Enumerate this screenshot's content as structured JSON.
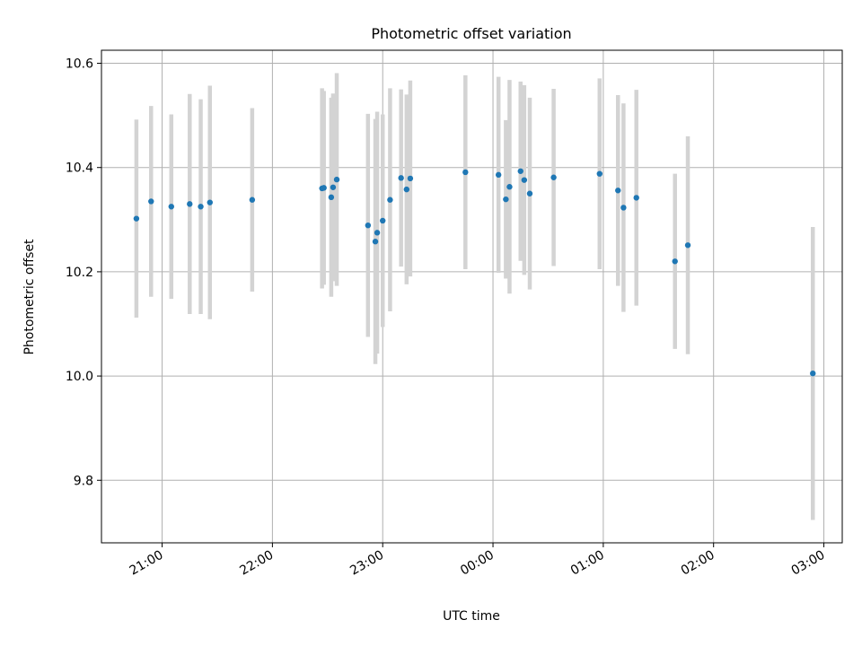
{
  "chart_data": {
    "type": "scatter",
    "title": "Photometric offset variation",
    "xlabel": "UTC time",
    "ylabel": "Photometric offset",
    "x_tick_labels": [
      "21:00",
      "22:00",
      "23:00",
      "00:00",
      "01:00",
      "02:00",
      "03:00"
    ],
    "y_ticks": [
      9.8,
      10.0,
      10.2,
      10.4,
      10.6
    ],
    "y_tick_labels": [
      "9.8",
      "10.0",
      "10.2",
      "10.4",
      "10.6"
    ],
    "grid": true,
    "ylim": [
      9.68,
      10.625
    ],
    "xlim": [
      "20:27",
      "03:10"
    ],
    "colors": {
      "points": "#1f77b4",
      "errorbars": "#d3d3d3",
      "grid": "#b0b0b0"
    },
    "points": [
      {
        "t": "20:46",
        "y": 10.302,
        "err": 0.19
      },
      {
        "t": "20:54",
        "y": 10.335,
        "err": 0.183
      },
      {
        "t": "21:05",
        "y": 10.325,
        "err": 0.177
      },
      {
        "t": "21:15",
        "y": 10.33,
        "err": 0.211
      },
      {
        "t": "21:21",
        "y": 10.325,
        "err": 0.206
      },
      {
        "t": "21:26",
        "y": 10.333,
        "err": 0.224
      },
      {
        "t": "21:49",
        "y": 10.338,
        "err": 0.176
      },
      {
        "t": "22:27",
        "y": 10.36,
        "err": 0.192
      },
      {
        "t": "22:28",
        "y": 10.361,
        "err": 0.186
      },
      {
        "t": "22:32",
        "y": 10.343,
        "err": 0.191
      },
      {
        "t": "22:33",
        "y": 10.362,
        "err": 0.18
      },
      {
        "t": "22:35",
        "y": 10.377,
        "err": 0.204
      },
      {
        "t": "22:52",
        "y": 10.289,
        "err": 0.214
      },
      {
        "t": "22:56",
        "y": 10.258,
        "err": 0.235
      },
      {
        "t": "22:57",
        "y": 10.275,
        "err": 0.232
      },
      {
        "t": "23:00",
        "y": 10.298,
        "err": 0.204
      },
      {
        "t": "23:04",
        "y": 10.338,
        "err": 0.214
      },
      {
        "t": "23:10",
        "y": 10.38,
        "err": 0.17
      },
      {
        "t": "23:13",
        "y": 10.358,
        "err": 0.182
      },
      {
        "t": "23:15",
        "y": 10.379,
        "err": 0.188
      },
      {
        "t": "23:45",
        "y": 10.391,
        "err": 0.186
      },
      {
        "t": "00:03",
        "y": 10.386,
        "err": 0.188
      },
      {
        "t": "00:07",
        "y": 10.339,
        "err": 0.152
      },
      {
        "t": "00:09",
        "y": 10.363,
        "err": 0.205
      },
      {
        "t": "00:15",
        "y": 10.393,
        "err": 0.172
      },
      {
        "t": "00:17",
        "y": 10.376,
        "err": 0.182
      },
      {
        "t": "00:20",
        "y": 10.35,
        "err": 0.184
      },
      {
        "t": "00:33",
        "y": 10.381,
        "err": 0.17
      },
      {
        "t": "00:58",
        "y": 10.388,
        "err": 0.183
      },
      {
        "t": "01:08",
        "y": 10.356,
        "err": 0.183
      },
      {
        "t": "01:11",
        "y": 10.323,
        "err": 0.2
      },
      {
        "t": "01:18",
        "y": 10.342,
        "err": 0.207
      },
      {
        "t": "01:39",
        "y": 10.22,
        "err": 0.168
      },
      {
        "t": "01:46",
        "y": 10.251,
        "err": 0.209
      },
      {
        "t": "02:54",
        "y": 10.005,
        "err": 0.281
      }
    ]
  }
}
